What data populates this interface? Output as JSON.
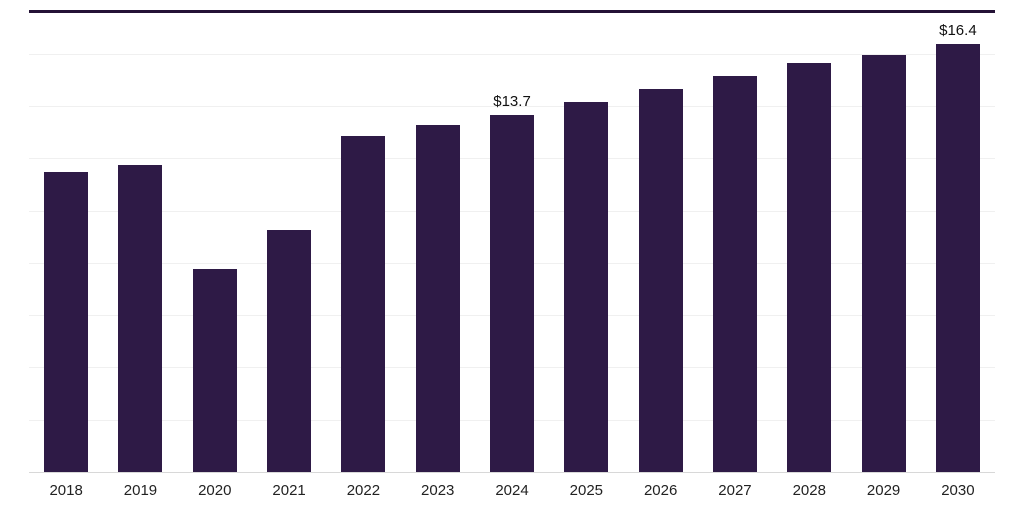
{
  "chart_data": {
    "type": "bar",
    "title": "",
    "xlabel": "",
    "ylabel": "",
    "categories": [
      "2018",
      "2019",
      "2020",
      "2021",
      "2022",
      "2023",
      "2024",
      "2025",
      "2026",
      "2027",
      "2028",
      "2029",
      "2030"
    ],
    "values": [
      11.5,
      11.8,
      7.8,
      9.3,
      12.9,
      13.3,
      13.7,
      14.2,
      14.7,
      15.2,
      15.7,
      16.0,
      16.4
    ],
    "value_labels": [
      "",
      "",
      "",
      "",
      "",
      "",
      "$13.7",
      "",
      "",
      "",
      "",
      "",
      "$16.4"
    ],
    "ylim": [
      0,
      17.6
    ],
    "grid": {
      "visible": true,
      "interval": 2
    },
    "legend_position": "none",
    "colors": {
      "bar": "#2e1a46",
      "value_label": "#111111",
      "tick_label": "#222222",
      "top_rule": "#241236",
      "baseline": "#d8d8d8",
      "gridline": "#f0f0f0"
    }
  }
}
